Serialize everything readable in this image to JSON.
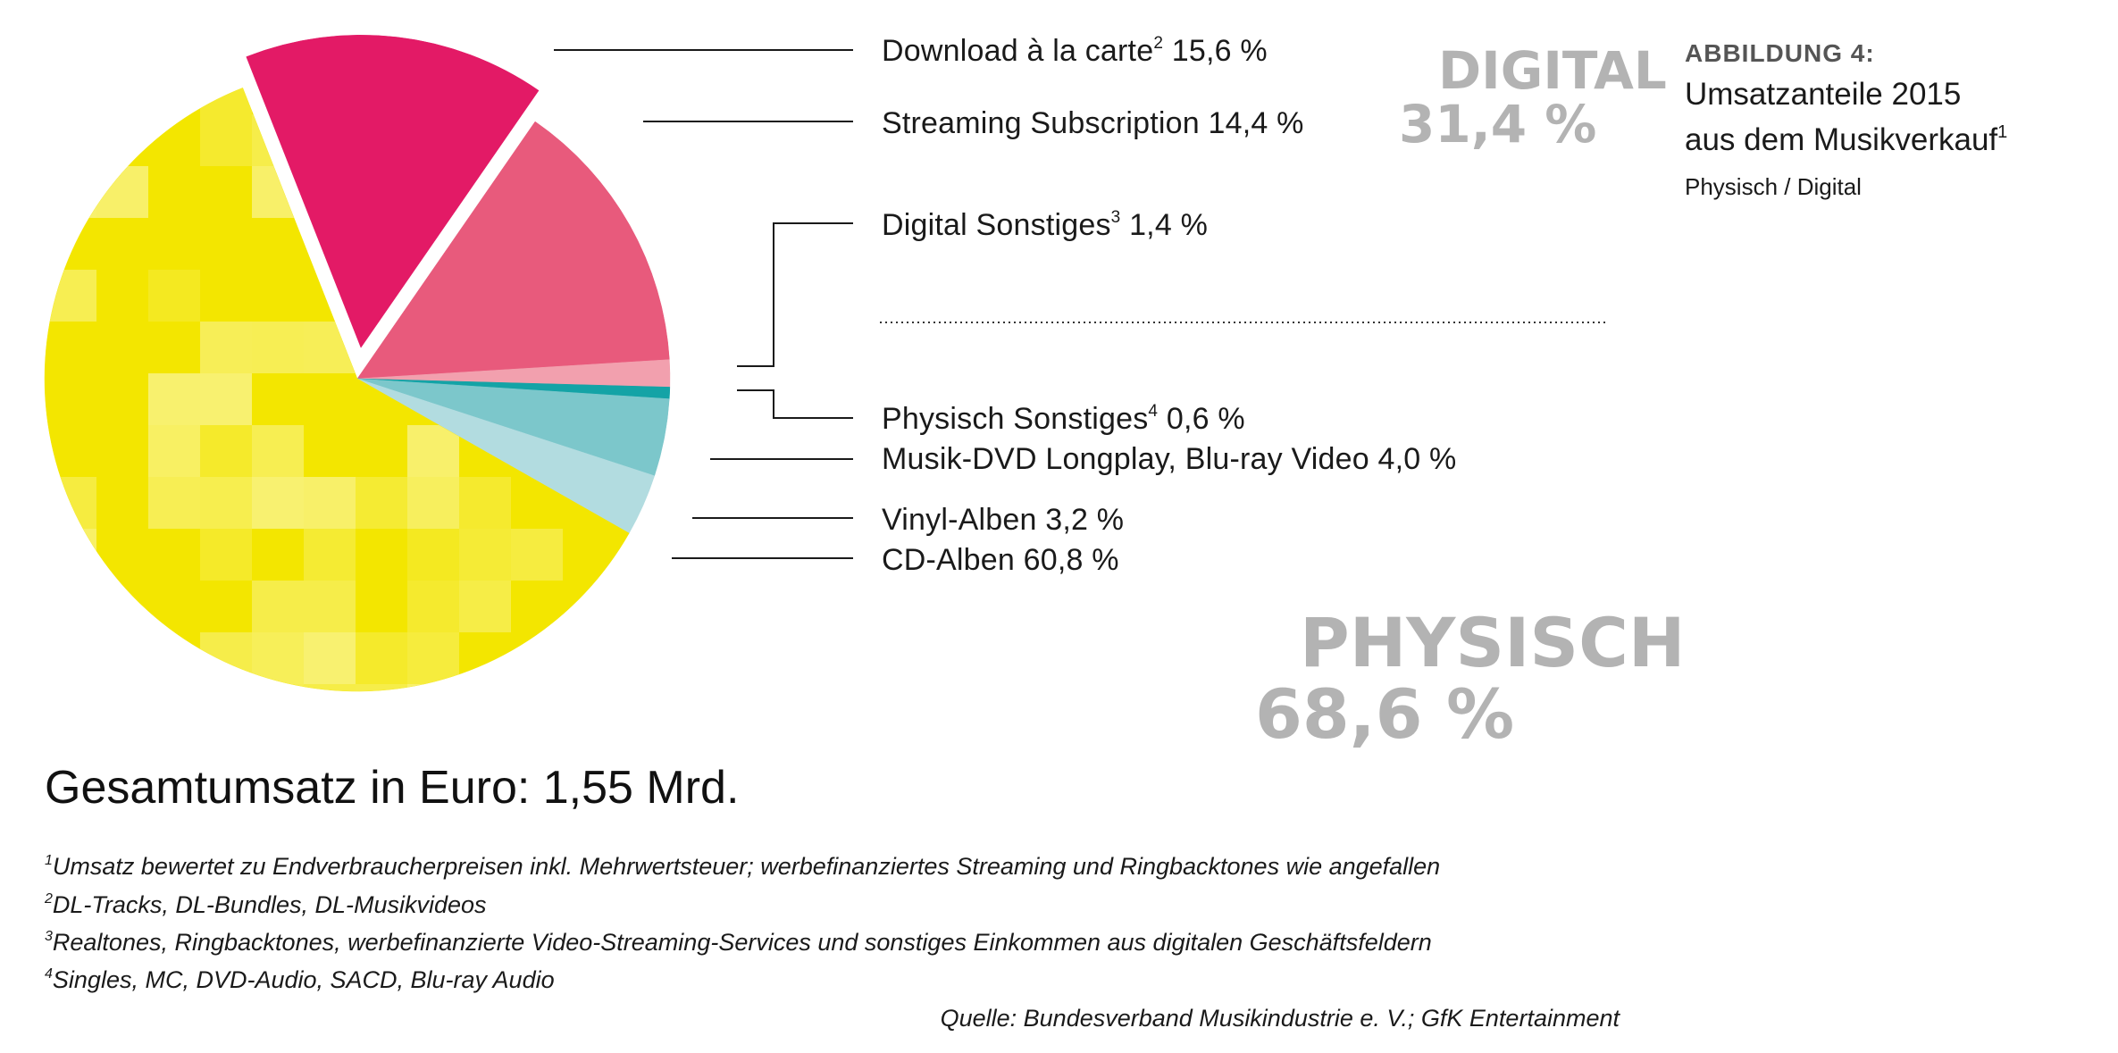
{
  "figure": {
    "kicker": "ABBILDUNG 4:",
    "title_line1": "Umsatzanteile 2015",
    "title_line2": "aus dem Musikverkauf",
    "title_sup": "1",
    "subtitle": "Physisch / Digital"
  },
  "groups": {
    "digital_name": "DIGITAL",
    "digital_value": "31,4 %",
    "physical_name": "PHYSISCH",
    "physical_value": "68,6 %"
  },
  "total": "Gesamtumsatz in Euro: 1,55 Mrd.",
  "footnotes": [
    {
      "num": "1",
      "text": "Umsatz bewertet zu Endverbraucherpreisen inkl. Mehrwertsteuer; werbefinanziertes Streaming und Ringbacktones wie angefallen"
    },
    {
      "num": "2",
      "text": "DL-Tracks, DL-Bundles, DL-Musikvideos"
    },
    {
      "num": "3",
      "text": "Realtones, Ringbacktones, werbefinanzierte Video-Streaming-Services und sonstiges Einkommen aus digitalen Geschäftsfeldern"
    },
    {
      "num": "4",
      "text": "Singles, MC, DVD-Audio, SACD, Blu-ray Audio"
    }
  ],
  "source": "Quelle: Bundesverband Musikindustrie e. V.; GfK Entertainment",
  "chart_data": {
    "type": "pie",
    "unit": "%",
    "slices": [
      {
        "label": "Download à la carte",
        "sup": "2",
        "value": 15.6,
        "value_text": "15,6 %",
        "group": "digital",
        "color": "#e31a66"
      },
      {
        "label": "Streaming Subscription",
        "sup": "",
        "value": 14.4,
        "value_text": "14,4 %",
        "group": "digital",
        "color": "#e85a7c"
      },
      {
        "label": "Digital Sonstiges",
        "sup": "3",
        "value": 1.4,
        "value_text": "1,4 %",
        "group": "digital",
        "color": "#f2a0ae"
      },
      {
        "label": "Physisch Sonstiges",
        "sup": "4",
        "value": 0.6,
        "value_text": "0,6 %",
        "group": "physical",
        "color": "#14a3a6"
      },
      {
        "label": "Musik-DVD Longplay, Blu-ray Video",
        "sup": "",
        "value": 4.0,
        "value_text": "4,0 %",
        "group": "physical",
        "color": "#7cc7cb"
      },
      {
        "label": "Vinyl-Alben",
        "sup": "",
        "value": 3.2,
        "value_text": "3,2 %",
        "group": "physical",
        "color": "#b2dce0"
      },
      {
        "label": "CD-Alben",
        "sup": "",
        "value": 60.8,
        "value_text": "60,8 %",
        "group": "physical",
        "color": "#f3e600"
      }
    ],
    "legend": "right"
  }
}
